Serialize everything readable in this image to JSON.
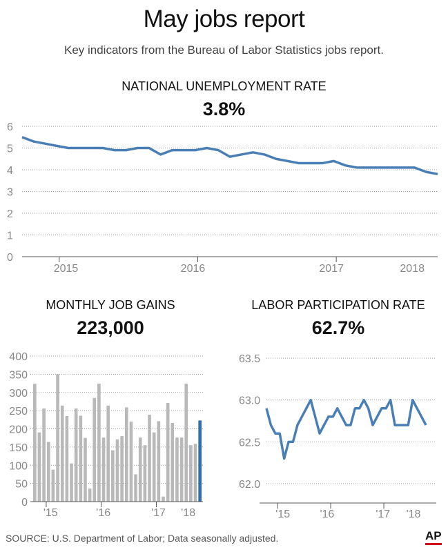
{
  "header": {
    "title": "May jobs report",
    "subtitle": "Key indicators from the Bureau of Labor Statistics jobs report."
  },
  "colors": {
    "line": "#4a7fb5",
    "bar": "#b9b9b9",
    "bar_highlight": "#2f6fb0",
    "grid": "#999999"
  },
  "footer": {
    "source": "SOURCE: U.S. Department of Labor; Data seasonally adjusted.",
    "logo": "AP"
  },
  "chart_data": [
    {
      "type": "line",
      "title": "NATIONAL UNEMPLOYMENT RATE",
      "headline_value": "3.8%",
      "ylim": [
        0,
        6
      ],
      "yticks": [
        "0",
        "1",
        "2",
        "3",
        "4",
        "5",
        "6"
      ],
      "xticks": [
        "2015",
        "2016",
        "2017",
        "2018"
      ],
      "grid": true,
      "x_start": "2014-10",
      "values": [
        5.5,
        5.3,
        5.2,
        5.1,
        5.0,
        5.0,
        5.0,
        5.0,
        4.9,
        4.9,
        5.0,
        5.0,
        4.7,
        4.9,
        4.9,
        4.9,
        5.0,
        4.9,
        4.6,
        4.7,
        4.8,
        4.7,
        4.5,
        4.4,
        4.3,
        4.3,
        4.3,
        4.4,
        4.2,
        4.1,
        4.1,
        4.1,
        4.1,
        4.1,
        4.1,
        3.9,
        3.8
      ]
    },
    {
      "type": "bar",
      "title": "MONTHLY JOB GAINS",
      "headline_value": "223,000",
      "ylim": [
        0,
        400
      ],
      "yticks": [
        "0",
        "50",
        "100",
        "150",
        "200",
        "250",
        "300",
        "350",
        "400"
      ],
      "xticks": [
        "'15",
        "'16",
        "'17",
        "'18"
      ],
      "grid": true,
      "values": [
        324,
        190,
        256,
        164,
        88,
        350,
        264,
        235,
        105,
        256,
        236,
        175,
        36,
        285,
        324,
        176,
        264,
        141,
        171,
        180,
        259,
        220,
        75,
        176,
        155,
        239,
        190,
        221,
        14,
        271,
        216,
        176,
        176,
        324,
        155,
        159,
        223
      ]
    },
    {
      "type": "line",
      "title": "LABOR PARTICIPATION RATE",
      "headline_value": "62.7%",
      "ylim": [
        62.0,
        63.5
      ],
      "yticks": [
        "62.0",
        "62.5",
        "63.0",
        "63.5"
      ],
      "xticks": [
        "'15",
        "'16",
        "'17",
        "'18"
      ],
      "grid": true,
      "values": [
        62.9,
        62.7,
        62.6,
        62.6,
        62.3,
        62.5,
        62.5,
        62.7,
        62.8,
        62.9,
        63.0,
        62.8,
        62.6,
        62.7,
        62.8,
        62.8,
        62.9,
        62.8,
        62.7,
        62.7,
        62.9,
        62.9,
        63.0,
        62.9,
        62.7,
        62.8,
        62.9,
        62.9,
        63.0,
        62.7,
        62.7,
        62.7,
        62.7,
        63.0,
        62.9,
        62.8,
        62.7
      ]
    }
  ]
}
